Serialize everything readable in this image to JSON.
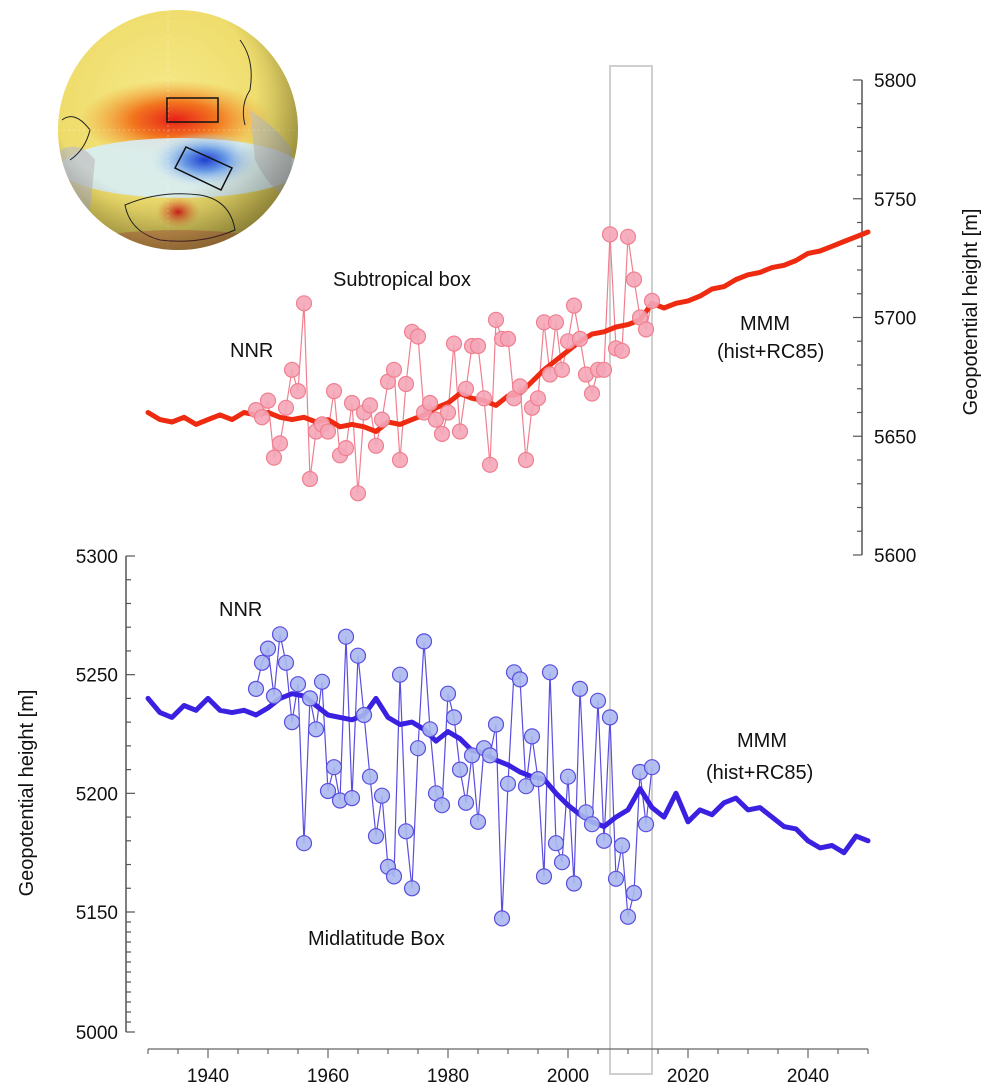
{
  "chart_data": {
    "type": "line",
    "x_axis": {
      "range": [
        1930,
        2050
      ],
      "ticks": [
        1940,
        1960,
        1980,
        2000,
        2020,
        2040
      ]
    },
    "highlight_window": [
      2007,
      2014
    ],
    "map": {
      "subtropical_box_color": "#e53a1e",
      "midlatitude_box_color": "#2a4fd6"
    },
    "panels": [
      {
        "name": "subtropical",
        "axis_side": "right",
        "ylabel": "Geopotential height [m]",
        "ylim": [
          5600,
          5800
        ],
        "yticks": [
          5600,
          5650,
          5700,
          5750,
          5800
        ],
        "annotations": {
          "box": "Subtropical box",
          "nnr": "NNR",
          "mmm": "MMM",
          "mmm_sub": "(hist+RC85)"
        },
        "series": [
          {
            "name": "NNR",
            "kind": "points",
            "color": "#f08090",
            "fill": "#f4a6b8",
            "x": [
              1948,
              1949,
              1950,
              1951,
              1952,
              1953,
              1954,
              1955,
              1956,
              1957,
              1958,
              1959,
              1960,
              1961,
              1962,
              1963,
              1964,
              1965,
              1966,
              1967,
              1968,
              1969,
              1970,
              1971,
              1972,
              1973,
              1974,
              1975,
              1976,
              1977,
              1978,
              1979,
              1980,
              1981,
              1982,
              1983,
              1984,
              1985,
              1986,
              1987,
              1988,
              1989,
              1990,
              1991,
              1992,
              1993,
              1994,
              1995,
              1996,
              1997,
              1998,
              1999,
              2000,
              2001,
              2002,
              2003,
              2004,
              2005,
              2006,
              2007,
              2008,
              2009,
              2010,
              2011,
              2012,
              2013,
              2014
            ],
            "y": [
              5661,
              5658,
              5665,
              5641,
              5647,
              5662,
              5678,
              5669,
              5706,
              5632,
              5652,
              5655,
              5652,
              5669,
              5642,
              5645,
              5664,
              5626,
              5660,
              5663,
              5646,
              5657,
              5673,
              5678,
              5640,
              5672,
              5694,
              5692,
              5660,
              5664,
              5657,
              5651,
              5660,
              5689,
              5652,
              5670,
              5688,
              5688,
              5666,
              5638,
              5699,
              5691,
              5691,
              5666,
              5671,
              5640,
              5662,
              5666,
              5698,
              5676,
              5698,
              5678,
              5690,
              5705,
              5691,
              5676,
              5668,
              5678,
              5678,
              5735,
              5687,
              5686,
              5734,
              5716,
              5700,
              5695,
              5707
            ]
          },
          {
            "name": "MMM",
            "kind": "line",
            "color": "#ee2a10",
            "x": [
              1930,
              1932,
              1934,
              1936,
              1938,
              1940,
              1942,
              1944,
              1946,
              1948,
              1950,
              1952,
              1954,
              1956,
              1958,
              1960,
              1962,
              1964,
              1966,
              1968,
              1970,
              1972,
              1974,
              1976,
              1978,
              1980,
              1982,
              1984,
              1986,
              1988,
              1990,
              1992,
              1994,
              1996,
              1998,
              2000,
              2002,
              2004,
              2006,
              2008,
              2010,
              2012,
              2014,
              2016,
              2018,
              2020,
              2022,
              2024,
              2026,
              2028,
              2030,
              2032,
              2034,
              2036,
              2038,
              2040,
              2042,
              2044,
              2046,
              2048,
              2050
            ],
            "y": [
              5660,
              5657,
              5656,
              5658,
              5655,
              5657,
              5659,
              5657,
              5660,
              5659,
              5660,
              5658,
              5657,
              5658,
              5656,
              5657,
              5654,
              5655,
              5654,
              5652,
              5656,
              5655,
              5657,
              5659,
              5662,
              5664,
              5668,
              5666,
              5665,
              5663,
              5667,
              5668,
              5673,
              5678,
              5682,
              5686,
              5690,
              5693,
              5694,
              5696,
              5697,
              5699,
              5706,
              5704,
              5706,
              5707,
              5709,
              5712,
              5713,
              5716,
              5718,
              5719,
              5721,
              5722,
              5724,
              5727,
              5728,
              5730,
              5732,
              5734,
              5736
            ]
          }
        ]
      },
      {
        "name": "midlatitude",
        "axis_side": "left",
        "ylabel": "Geopotential height [m]",
        "ylim": [
          5000,
          5300
        ],
        "yticks": [
          5000,
          5150,
          5200,
          5250,
          5300
        ],
        "annotations": {
          "box": "Midlatitude Box",
          "nnr": "NNR",
          "mmm": "MMM",
          "mmm_sub": "(hist+RC85)"
        },
        "series": [
          {
            "name": "NNR",
            "kind": "points",
            "color": "#5a4ee0",
            "fill": "#aab8ee",
            "x": [
              1948,
              1949,
              1950,
              1951,
              1952,
              1953,
              1954,
              1955,
              1956,
              1957,
              1958,
              1959,
              1960,
              1961,
              1962,
              1963,
              1964,
              1965,
              1966,
              1967,
              1968,
              1969,
              1970,
              1971,
              1972,
              1973,
              1974,
              1975,
              1976,
              1977,
              1978,
              1979,
              1980,
              1981,
              1982,
              1983,
              1984,
              1985,
              1986,
              1987,
              1988,
              1989,
              1990,
              1991,
              1992,
              1993,
              1994,
              1995,
              1996,
              1997,
              1998,
              1999,
              2000,
              2001,
              2002,
              2003,
              2004,
              2005,
              2006,
              2007,
              2008,
              2009,
              2010,
              2011,
              2012,
              2013,
              2014
            ],
            "y": [
              5244,
              5255,
              5261,
              5241,
              5267,
              5255,
              5230,
              5246,
              5179,
              5240,
              5227,
              5247,
              5201,
              5211,
              5197,
              5266,
              5198,
              5258,
              5233,
              5207,
              5182,
              5199,
              5169,
              5165,
              5250,
              5184,
              5160,
              5219,
              5264,
              5227,
              5200,
              5195,
              5242,
              5232,
              5210,
              5196,
              5216,
              5188,
              5219,
              5216,
              5229,
              5142,
              5204,
              5251,
              5248,
              5203,
              5224,
              5206,
              5165,
              5251,
              5179,
              5171,
              5207,
              5162,
              5244,
              5192,
              5187,
              5239,
              5180,
              5232,
              5164,
              5178,
              5144,
              5158,
              5209,
              5187,
              5211
            ]
          },
          {
            "name": "MMM",
            "kind": "line",
            "color": "#3a20e0",
            "x": [
              1930,
              1932,
              1934,
              1936,
              1938,
              1940,
              1942,
              1944,
              1946,
              1948,
              1950,
              1952,
              1954,
              1956,
              1958,
              1960,
              1962,
              1964,
              1966,
              1968,
              1970,
              1972,
              1974,
              1976,
              1978,
              1980,
              1982,
              1984,
              1986,
              1988,
              1990,
              1992,
              1994,
              1996,
              1998,
              2000,
              2002,
              2004,
              2006,
              2008,
              2010,
              2012,
              2014,
              2016,
              2018,
              2020,
              2022,
              2024,
              2026,
              2028,
              2030,
              2032,
              2034,
              2036,
              2038,
              2040,
              2042,
              2044,
              2046,
              2048,
              2050
            ],
            "y": [
              5240,
              5234,
              5232,
              5237,
              5235,
              5240,
              5235,
              5234,
              5235,
              5233,
              5236,
              5240,
              5242,
              5241,
              5237,
              5233,
              5232,
              5231,
              5233,
              5240,
              5232,
              5229,
              5230,
              5227,
              5222,
              5226,
              5223,
              5218,
              5217,
              5214,
              5212,
              5209,
              5207,
              5206,
              5200,
              5195,
              5191,
              5188,
              5186,
              5190,
              5193,
              5202,
              5194,
              5190,
              5200,
              5188,
              5193,
              5191,
              5196,
              5198,
              5193,
              5194,
              5190,
              5186,
              5185,
              5180,
              5177,
              5178,
              5175,
              5182,
              5180
            ]
          }
        ]
      }
    ]
  }
}
